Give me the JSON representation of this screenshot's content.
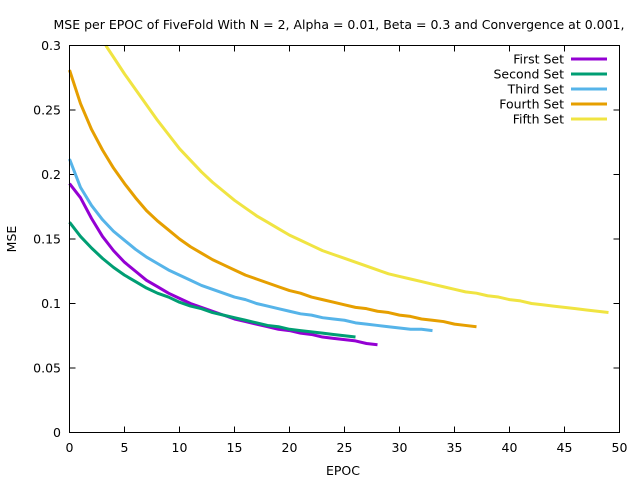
{
  "chart_data": {
    "type": "line",
    "title": "MSE per EPOC of FiveFold With N = 2, Alpha = 0.01, Beta = 0.3 and Convergence at 0.001,",
    "xlabel": "EPOC",
    "ylabel": "MSE",
    "xlim": [
      0,
      50
    ],
    "ylim": [
      0,
      0.3
    ],
    "x_ticks": [
      0,
      5,
      10,
      15,
      20,
      25,
      30,
      35,
      40,
      45,
      50
    ],
    "y_ticks": [
      0,
      0.05,
      0.1,
      0.15,
      0.2,
      0.25,
      0.3
    ],
    "y_tick_labels": [
      "0",
      "0.05",
      "0.1",
      "0.15",
      "0.2",
      "0.25",
      "0.3"
    ],
    "grid": false,
    "legend_position": "top-right",
    "series": [
      {
        "name": "First Set",
        "color": "#9400d3",
        "x": [
          0,
          1,
          2,
          3,
          4,
          5,
          6,
          7,
          8,
          9,
          10,
          11,
          12,
          13,
          14,
          15,
          16,
          17,
          18,
          19,
          20,
          21,
          22,
          23,
          24,
          25,
          26,
          27,
          28
        ],
        "values": [
          0.193,
          0.182,
          0.166,
          0.152,
          0.141,
          0.132,
          0.125,
          0.118,
          0.113,
          0.108,
          0.104,
          0.1,
          0.097,
          0.094,
          0.091,
          0.088,
          0.086,
          0.084,
          0.082,
          0.08,
          0.079,
          0.077,
          0.076,
          0.074,
          0.073,
          0.072,
          0.071,
          0.069,
          0.068
        ]
      },
      {
        "name": "Second Set",
        "color": "#009e73",
        "x": [
          0,
          1,
          2,
          3,
          4,
          5,
          6,
          7,
          8,
          9,
          10,
          11,
          12,
          13,
          14,
          15,
          16,
          17,
          18,
          19,
          20,
          21,
          22,
          23,
          24,
          25,
          26
        ],
        "values": [
          0.163,
          0.152,
          0.143,
          0.135,
          0.128,
          0.122,
          0.117,
          0.112,
          0.108,
          0.105,
          0.101,
          0.098,
          0.096,
          0.093,
          0.091,
          0.089,
          0.087,
          0.085,
          0.083,
          0.082,
          0.08,
          0.079,
          0.078,
          0.077,
          0.076,
          0.075,
          0.074
        ]
      },
      {
        "name": "Third Set",
        "color": "#56b4e9",
        "x": [
          0,
          1,
          2,
          3,
          4,
          5,
          6,
          7,
          8,
          9,
          10,
          11,
          12,
          13,
          14,
          15,
          16,
          17,
          18,
          19,
          20,
          21,
          22,
          23,
          24,
          25,
          26,
          27,
          28,
          29,
          30,
          31,
          32,
          33
        ],
        "values": [
          0.212,
          0.19,
          0.176,
          0.165,
          0.156,
          0.149,
          0.142,
          0.136,
          0.131,
          0.126,
          0.122,
          0.118,
          0.114,
          0.111,
          0.108,
          0.105,
          0.103,
          0.1,
          0.098,
          0.096,
          0.094,
          0.092,
          0.091,
          0.089,
          0.088,
          0.087,
          0.085,
          0.084,
          0.083,
          0.082,
          0.081,
          0.08,
          0.08,
          0.079
        ]
      },
      {
        "name": "Fourth Set",
        "color": "#e69f00",
        "x": [
          0,
          1,
          2,
          3,
          4,
          5,
          6,
          7,
          8,
          9,
          10,
          11,
          12,
          13,
          14,
          15,
          16,
          17,
          18,
          19,
          20,
          21,
          22,
          23,
          24,
          25,
          26,
          27,
          28,
          29,
          30,
          31,
          32,
          33,
          34,
          35,
          36,
          37
        ],
        "values": [
          0.281,
          0.255,
          0.235,
          0.219,
          0.205,
          0.193,
          0.182,
          0.172,
          0.164,
          0.157,
          0.15,
          0.144,
          0.139,
          0.134,
          0.13,
          0.126,
          0.122,
          0.119,
          0.116,
          0.113,
          0.11,
          0.108,
          0.105,
          0.103,
          0.101,
          0.099,
          0.097,
          0.096,
          0.094,
          0.093,
          0.091,
          0.09,
          0.088,
          0.087,
          0.086,
          0.084,
          0.083,
          0.082
        ]
      },
      {
        "name": "Fifth Set",
        "color": "#f0e442",
        "x": [
          3.3,
          4,
          5,
          6,
          7,
          8,
          9,
          10,
          11,
          12,
          13,
          14,
          15,
          16,
          17,
          18,
          19,
          20,
          21,
          22,
          23,
          24,
          25,
          26,
          27,
          28,
          29,
          30,
          31,
          32,
          33,
          34,
          35,
          36,
          37,
          38,
          39,
          40,
          41,
          42,
          43,
          44,
          45,
          46,
          47,
          48,
          49
        ],
        "values": [
          0.3,
          0.291,
          0.278,
          0.266,
          0.254,
          0.242,
          0.231,
          0.22,
          0.211,
          0.202,
          0.194,
          0.187,
          0.18,
          0.174,
          0.168,
          0.163,
          0.158,
          0.153,
          0.149,
          0.145,
          0.141,
          0.138,
          0.135,
          0.132,
          0.129,
          0.126,
          0.123,
          0.121,
          0.119,
          0.117,
          0.115,
          0.113,
          0.111,
          0.109,
          0.108,
          0.106,
          0.105,
          0.103,
          0.102,
          0.1,
          0.099,
          0.098,
          0.097,
          0.096,
          0.095,
          0.094,
          0.093
        ]
      }
    ]
  }
}
